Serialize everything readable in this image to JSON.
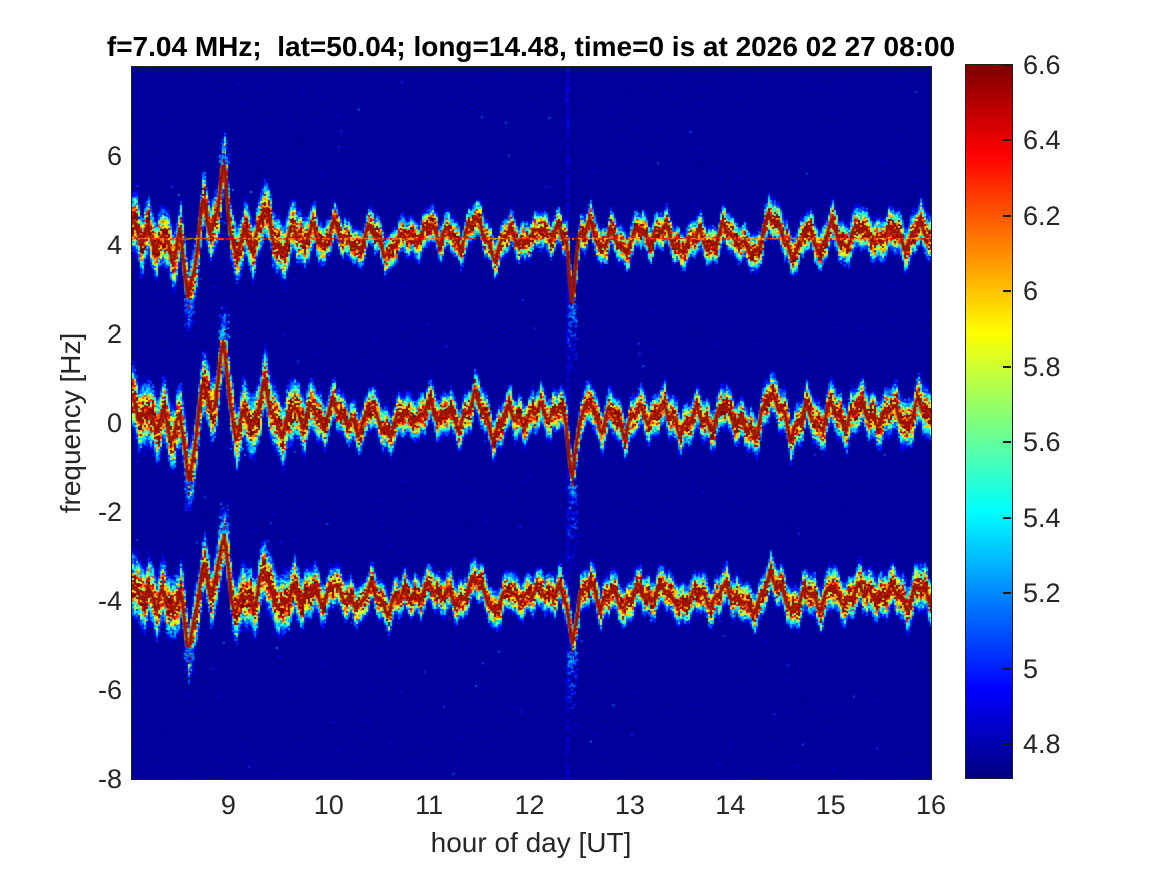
{
  "title": "f=7.04 MHz;  lat=50.04; long=14.48, time=0 is at 2026 02 27 08:00",
  "axes": {
    "xlabel": "hour of day [UT]",
    "ylabel": "frequency [Hz]",
    "xtick_labels": [
      "9",
      "10",
      "11",
      "12",
      "13",
      "14",
      "15",
      "16"
    ],
    "ytick_labels": [
      "6",
      "4",
      "2",
      "0",
      "-2",
      "-4",
      "-6",
      "-8"
    ]
  },
  "colorbar": {
    "tick_labels": [
      "6.6",
      "6.4",
      "6.2",
      "6",
      "5.8",
      "5.6",
      "5.4",
      "5.2",
      "5",
      "4.8"
    ],
    "tick_values": [
      6.6,
      6.4,
      6.2,
      6,
      5.8,
      5.6,
      5.4,
      5.2,
      5,
      4.8
    ]
  },
  "chart_data": {
    "type": "heatmap",
    "variant": "doppler_shift_spectrogram",
    "title": "f=7.04 MHz;  lat=50.04; long=14.48, time=0 is at 2026 02 27 08:00",
    "xlabel": "hour of day [UT]",
    "ylabel": "frequency [Hz]",
    "xlim": [
      8.04,
      16
    ],
    "ylim": [
      -8,
      8
    ],
    "xticks": [
      9,
      10,
      11,
      12,
      13,
      14,
      15,
      16
    ],
    "yticks": [
      6,
      4,
      2,
      0,
      -2,
      -4,
      -6,
      -8
    ],
    "grid": false,
    "colormap": "jet",
    "background_level": 4.76,
    "color_axis": {
      "range": [
        4.71,
        6.6
      ],
      "ticks": [
        6.6,
        6.4,
        6.2,
        6,
        5.8,
        5.6,
        5.4,
        5.2,
        5,
        4.8
      ],
      "position": "right"
    },
    "bands": [
      {
        "name": "upper-doppler-trace",
        "center_hz": 4.15,
        "amplitude_scale": 1.0,
        "width_scale": 0.9
      },
      {
        "name": "middle-doppler-trace",
        "center_hz": 0.12,
        "amplitude_scale": 1.05,
        "width_scale": 1.0
      },
      {
        "name": "lower-doppler-trace",
        "center_hz": -3.9,
        "amplitude_scale": 0.85,
        "width_scale": 0.95
      }
    ],
    "trace_shape_keypoints": [
      [
        8.05,
        0.35
      ],
      [
        8.12,
        -0.1
      ],
      [
        8.2,
        0.25
      ],
      [
        8.28,
        -0.35
      ],
      [
        8.35,
        0.2
      ],
      [
        8.45,
        -0.5
      ],
      [
        8.52,
        0.1
      ],
      [
        8.6,
        -1.35
      ],
      [
        8.68,
        -0.4
      ],
      [
        8.75,
        0.9
      ],
      [
        8.82,
        0.1
      ],
      [
        8.88,
        0.5
      ],
      [
        8.95,
        1.7
      ],
      [
        9.02,
        0.2
      ],
      [
        9.08,
        -0.45
      ],
      [
        9.15,
        0.1
      ],
      [
        9.25,
        -0.2
      ],
      [
        9.35,
        0.7
      ],
      [
        9.45,
        0
      ],
      [
        9.55,
        -0.35
      ],
      [
        9.65,
        0.3
      ],
      [
        9.75,
        -0.15
      ],
      [
        9.85,
        0.25
      ],
      [
        9.95,
        -0.2
      ],
      [
        10.05,
        0.35
      ],
      [
        10.15,
        0
      ],
      [
        10.3,
        -0.3
      ],
      [
        10.4,
        0.3
      ],
      [
        10.5,
        -0.1
      ],
      [
        10.6,
        -0.35
      ],
      [
        10.75,
        0.15
      ],
      [
        10.9,
        -0.15
      ],
      [
        11,
        0.45
      ],
      [
        11.1,
        -0.15
      ],
      [
        11.2,
        0.25
      ],
      [
        11.3,
        -0.3
      ],
      [
        11.45,
        0.55
      ],
      [
        11.55,
        0
      ],
      [
        11.65,
        -0.4
      ],
      [
        11.8,
        0.2
      ],
      [
        11.95,
        -0.15
      ],
      [
        12.1,
        0.3
      ],
      [
        12.2,
        -0.1
      ],
      [
        12.3,
        0.35
      ],
      [
        12.37,
        -0.2
      ],
      [
        12.42,
        -1.45
      ],
      [
        12.5,
        0.1
      ],
      [
        12.6,
        0.35
      ],
      [
        12.7,
        -0.25
      ],
      [
        12.8,
        0.15
      ],
      [
        12.95,
        -0.3
      ],
      [
        13.1,
        0.25
      ],
      [
        13.2,
        -0.1
      ],
      [
        13.35,
        0.3
      ],
      [
        13.5,
        -0.35
      ],
      [
        13.65,
        0.15
      ],
      [
        13.8,
        -0.2
      ],
      [
        13.95,
        0.25
      ],
      [
        14.1,
        -0.15
      ],
      [
        14.25,
        -0.35
      ],
      [
        14.4,
        0.55
      ],
      [
        14.5,
        0.25
      ],
      [
        14.6,
        -0.45
      ],
      [
        14.75,
        0.2
      ],
      [
        14.9,
        -0.25
      ],
      [
        15,
        0.3
      ],
      [
        15.15,
        -0.2
      ],
      [
        15.3,
        0.35
      ],
      [
        15.45,
        -0.15
      ],
      [
        15.6,
        0.25
      ],
      [
        15.75,
        -0.2
      ],
      [
        15.88,
        0.3
      ],
      [
        16,
        0
      ]
    ],
    "spread_profile": [
      [
        8.05,
        0.5
      ],
      [
        9.6,
        0.48
      ],
      [
        10,
        0.32
      ],
      [
        14.2,
        0.32
      ],
      [
        16,
        0.38
      ]
    ],
    "features": {
      "carrier_line_hz": 4.15,
      "vertical_artifact_hour": 12.37,
      "deep_dip_hours": [
        8.6,
        12.42
      ],
      "spike_hour": 8.95
    }
  }
}
